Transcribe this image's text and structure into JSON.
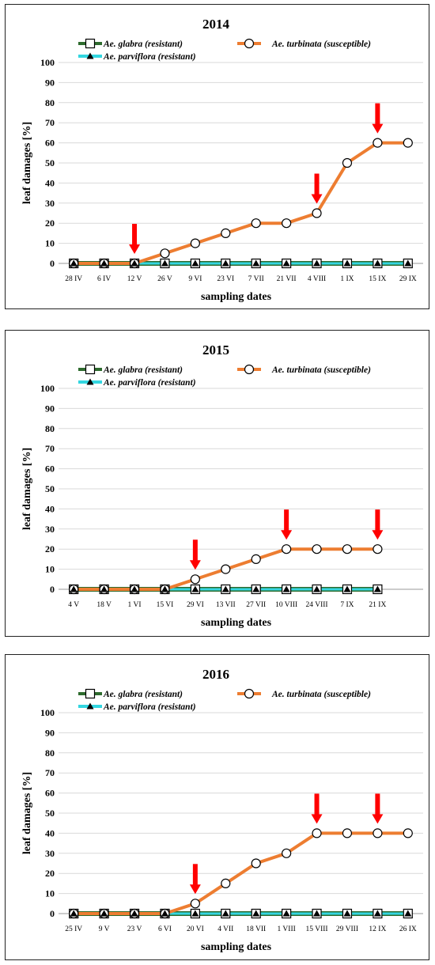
{
  "chart_data": [
    {
      "type": "line",
      "title": "2014",
      "xlabel": "sampling dates",
      "ylabel": "leaf damages [%]",
      "ylim": [
        0,
        100
      ],
      "yticks": [
        "0",
        "10",
        "20",
        "30",
        "40",
        "50",
        "60",
        "70",
        "80",
        "90",
        "100"
      ],
      "grid": true,
      "legend": "top",
      "categories": [
        "28 IV",
        "6 IV",
        "12 V",
        "26 V",
        "9 VI",
        "23 VI",
        "7 VII",
        "21 VII",
        "4 VIII",
        "1 IX",
        "15 IX",
        "29 IX"
      ],
      "series": [
        {
          "name": "Ae. glabra (resistant)",
          "color": "#2e6b2e",
          "marker": "square",
          "values": [
            0,
            0,
            0,
            0,
            0,
            0,
            0,
            0,
            0,
            0,
            0,
            0
          ]
        },
        {
          "name": "Ae. turbinata (susceptible)",
          "color": "#ed7d31",
          "marker": "circle",
          "values": [
            0,
            0,
            0,
            5,
            10,
            15,
            20,
            20,
            25,
            50,
            60,
            60
          ]
        },
        {
          "name": "Ae. parviflora (resistant)",
          "color": "#33d6e0",
          "marker": "triangle",
          "values": [
            0,
            0,
            0,
            0,
            0,
            0,
            0,
            0,
            0,
            0,
            0,
            0
          ]
        }
      ],
      "arrow_indices": [
        2,
        8,
        10
      ],
      "arrow_color": "#ff0000"
    },
    {
      "type": "line",
      "title": "2015",
      "xlabel": "sampling dates",
      "ylabel": "leaf damages [%]",
      "ylim": [
        0,
        100
      ],
      "yticks": [
        "0",
        "10",
        "20",
        "30",
        "40",
        "50",
        "60",
        "70",
        "80",
        "90",
        "100"
      ],
      "grid": true,
      "legend": "top",
      "categories": [
        "4 V",
        "18 V",
        "1 VI",
        "15 VI",
        "29 VI",
        "13 VII",
        "27 VII",
        "10 VIII",
        "24 VIII",
        "7 IX",
        "21 IX"
      ],
      "series": [
        {
          "name": "Ae. glabra (resistant)",
          "color": "#2e6b2e",
          "marker": "square",
          "values": [
            0,
            0,
            0,
            0,
            0,
            0,
            0,
            0,
            0,
            0,
            0
          ]
        },
        {
          "name": "Ae. turbinata (susceptible)",
          "color": "#ed7d31",
          "marker": "circle",
          "values": [
            0,
            0,
            0,
            0,
            5,
            10,
            15,
            20,
            20,
            20,
            20
          ]
        },
        {
          "name": "Ae. parviflora (resistant)",
          "color": "#33d6e0",
          "marker": "triangle",
          "values": [
            0,
            0,
            0,
            0,
            0,
            0,
            0,
            0,
            0,
            0,
            0
          ]
        }
      ],
      "arrow_indices": [
        4,
        7,
        10
      ],
      "arrow_color": "#ff0000"
    },
    {
      "type": "line",
      "title": "2016",
      "xlabel": "sampling dates",
      "ylabel": "leaf damages [%]",
      "ylim": [
        0,
        100
      ],
      "yticks": [
        "0",
        "10",
        "20",
        "30",
        "40",
        "50",
        "60",
        "70",
        "80",
        "90",
        "100"
      ],
      "grid": true,
      "legend": "top",
      "categories": [
        "25 IV",
        "9 V",
        "23 V",
        "6 VI",
        "20 VI",
        "4 VII",
        "18 VII",
        "1 VIII",
        "15 VIII",
        "29 VIII",
        "12 IX",
        "26 IX"
      ],
      "series": [
        {
          "name": "Ae. glabra (resistant)",
          "color": "#2e6b2e",
          "marker": "square",
          "values": [
            0,
            0,
            0,
            0,
            0,
            0,
            0,
            0,
            0,
            0,
            0,
            0
          ]
        },
        {
          "name": "Ae. turbinata (susceptible)",
          "color": "#ed7d31",
          "marker": "circle",
          "values": [
            0,
            0,
            0,
            0,
            5,
            15,
            25,
            30,
            40,
            40,
            40,
            40
          ]
        },
        {
          "name": "Ae. parviflora (resistant)",
          "color": "#33d6e0",
          "marker": "triangle",
          "values": [
            0,
            0,
            0,
            0,
            0,
            0,
            0,
            0,
            0,
            0,
            0,
            0
          ]
        }
      ],
      "arrow_indices": [
        4,
        8,
        10
      ],
      "arrow_color": "#ff0000"
    }
  ]
}
